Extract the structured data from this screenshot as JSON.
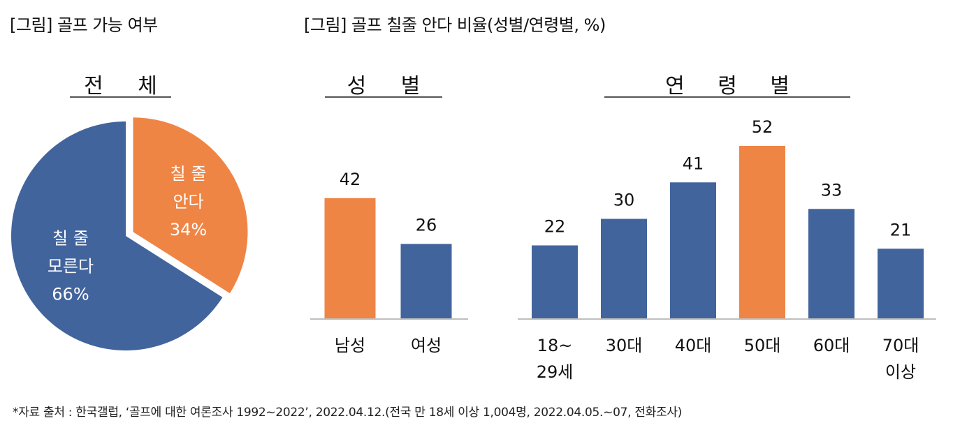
{
  "titles": {
    "left": "[그림] 골프 가능 여부",
    "right": "[그림] 골프 칠줄 안다 비율(성별/연령별, %)"
  },
  "headers": {
    "total": "전 체",
    "gender": "성 별",
    "age": "연 령 별"
  },
  "colors": {
    "blue": "#42649d",
    "orange": "#ef8545"
  },
  "chart_data": [
    {
      "type": "pie",
      "title": "전 체",
      "slices": [
        {
          "label": [
            "칠 줄",
            "안다",
            "34%"
          ],
          "value": 34,
          "color": "#ef8545",
          "exploded": true
        },
        {
          "label": [
            "칠 줄",
            "모른다",
            "66%"
          ],
          "value": 66,
          "color": "#42649d",
          "exploded": false
        }
      ]
    },
    {
      "type": "bar",
      "title": "성 별",
      "categories": [
        [
          "남성"
        ],
        [
          "여성"
        ]
      ],
      "values": [
        42,
        26
      ],
      "colors": [
        "#ef8545",
        "#42649d"
      ]
    },
    {
      "type": "bar",
      "title": "연 령 별",
      "categories": [
        [
          "18~",
          "29세"
        ],
        [
          "30대"
        ],
        [
          "40대"
        ],
        [
          "50대"
        ],
        [
          "60대"
        ],
        [
          "70대",
          "이상"
        ]
      ],
      "values": [
        22,
        30,
        41,
        52,
        33,
        21
      ],
      "colors": [
        "#42649d",
        "#42649d",
        "#42649d",
        "#ef8545",
        "#42649d",
        "#42649d"
      ]
    }
  ],
  "source": "*자료 출처 : 한국갤럽, ‘골프에 대한 여론조사 1992~2022’, 2022.04.12.(전국 만 18세 이상 1,004명, 2022.04.05.~07, 전화조사)"
}
